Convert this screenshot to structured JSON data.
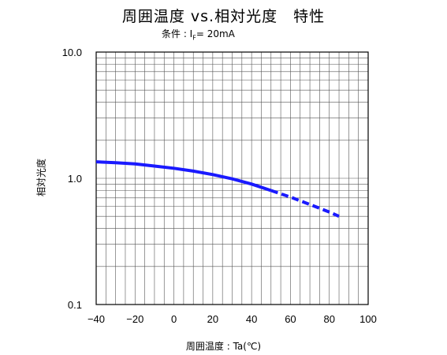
{
  "chart_data": {
    "type": "line",
    "title": "周囲温度 vs.相対光度　特性",
    "subtitle_prefix": "条件 : I",
    "subtitle_sub": "F",
    "subtitle_suffix": "= 20mA",
    "xlabel": "周囲温度 : Ta(℃)",
    "ylabel": "相対光度",
    "xlim": [
      -40,
      100
    ],
    "ylim": [
      0.1,
      10.0
    ],
    "yscale": "log",
    "grid": true,
    "x_ticks": [
      "−40",
      "−20",
      "0",
      "20",
      "40",
      "60",
      "80",
      "100"
    ],
    "y_ticks": [
      "10.0",
      "1.0",
      "0.1"
    ],
    "series": [
      {
        "color": "#1a1aff",
        "segments": [
          {
            "style": "solid",
            "x": [
              -40,
              -30,
              -20,
              -10,
              0,
              10,
              20,
              30,
              40,
              50
            ],
            "y": [
              1.35,
              1.33,
              1.3,
              1.25,
              1.2,
              1.14,
              1.07,
              0.99,
              0.9,
              0.8
            ]
          },
          {
            "style": "dashed",
            "x": [
              50,
              60,
              70,
              80,
              85
            ],
            "y": [
              0.8,
              0.71,
              0.62,
              0.54,
              0.5
            ]
          }
        ]
      }
    ]
  }
}
